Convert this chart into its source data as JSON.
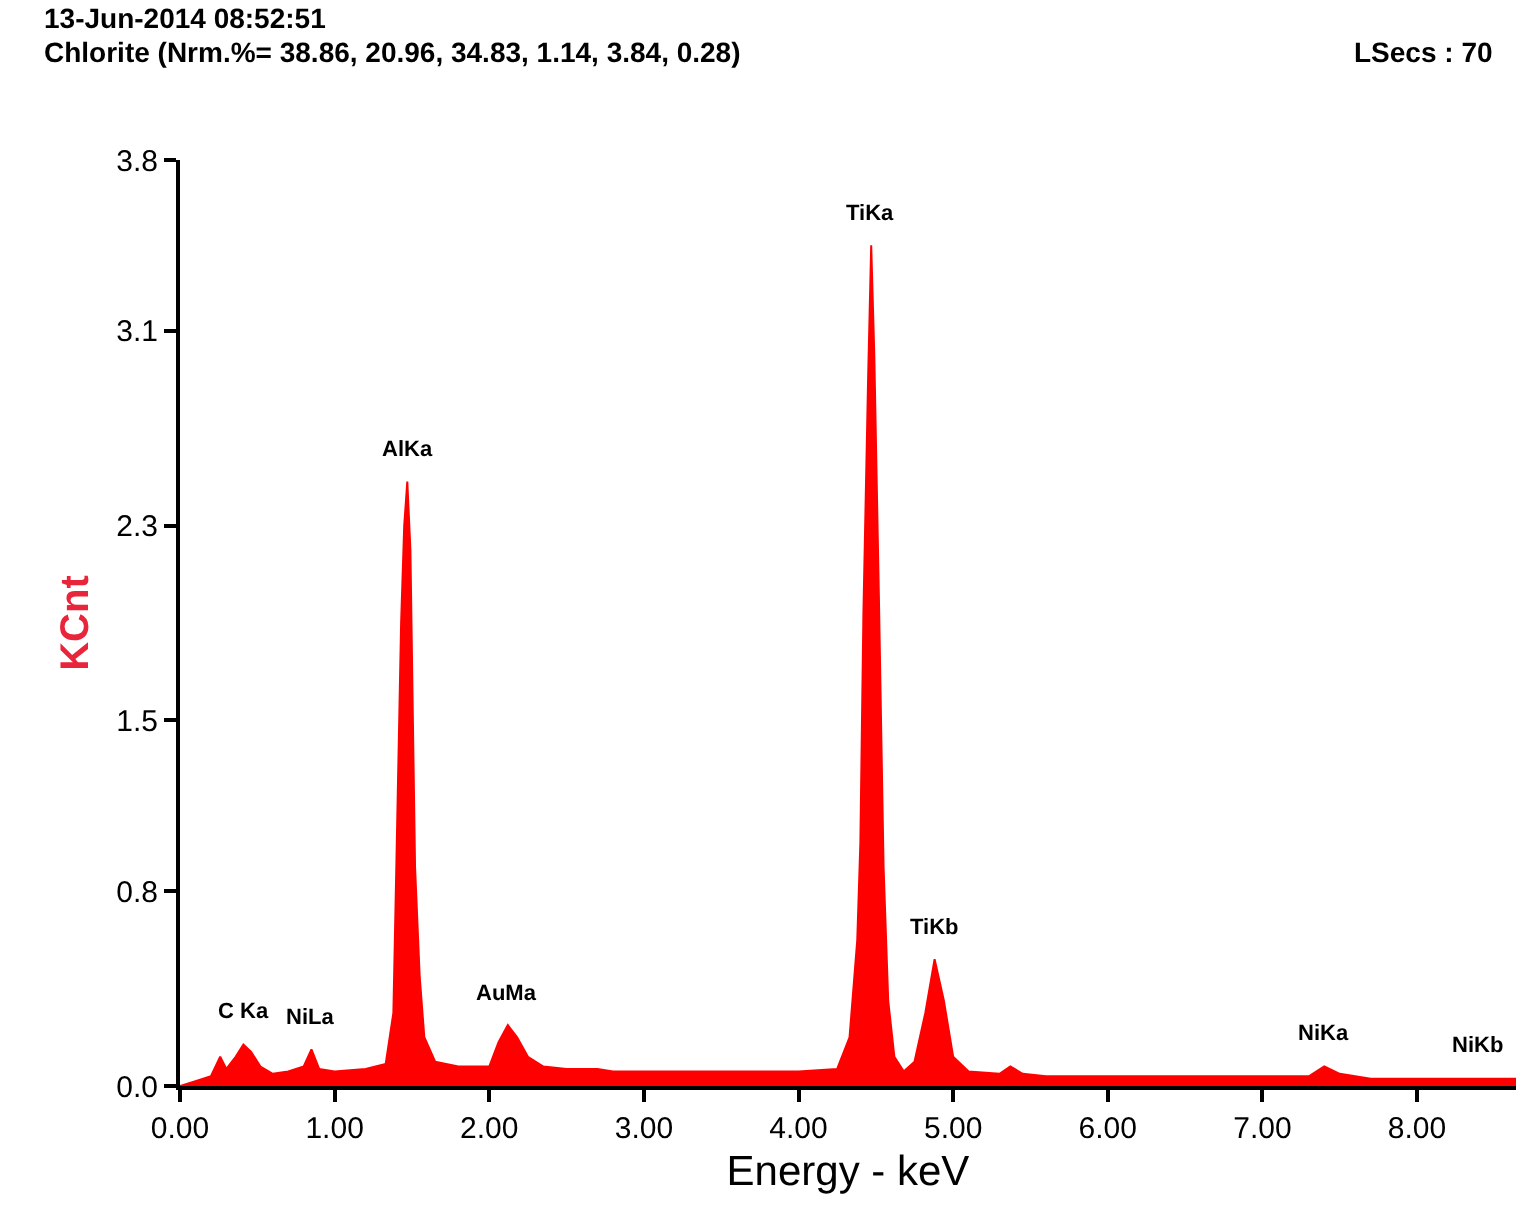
{
  "chart_data": {
    "type": "area",
    "title": "13-Jun-2014 08:52:51",
    "subtitle": "Chlorite (Nrm.%= 38.86, 20.96, 34.83, 1.14, 3.84, 0.28)",
    "xlabel": "Energy - keV",
    "ylabel": "KCnt",
    "annotations": [
      "LSecs : 70",
      {
        "text": "C Ka",
        "x": 0.41,
        "y": 0.17
      },
      {
        "text": "NiLa",
        "x": 0.85,
        "y": 0.15
      },
      {
        "text": "AlKa",
        "x": 1.47,
        "y": 2.48
      },
      {
        "text": "AuMa",
        "x": 2.12,
        "y": 0.25
      },
      {
        "text": "TiKa",
        "x": 4.47,
        "y": 3.45
      },
      {
        "text": "TiKb",
        "x": 4.88,
        "y": 0.52
      },
      {
        "text": "NiKa",
        "x": 7.4,
        "y": 0.08
      },
      {
        "text": "NiKb",
        "x": 8.4,
        "y": 0.03
      }
    ],
    "x": [
      0.0,
      0.1,
      0.2,
      0.26,
      0.3,
      0.36,
      0.41,
      0.46,
      0.52,
      0.6,
      0.7,
      0.8,
      0.85,
      0.9,
      1.0,
      1.2,
      1.33,
      1.38,
      1.4,
      1.43,
      1.45,
      1.47,
      1.49,
      1.52,
      1.55,
      1.58,
      1.65,
      1.8,
      2.0,
      2.06,
      2.12,
      2.18,
      2.25,
      2.35,
      2.5,
      2.7,
      2.8,
      3.0,
      3.5,
      4.0,
      4.25,
      4.33,
      4.38,
      4.4,
      4.42,
      4.45,
      4.47,
      4.49,
      4.52,
      4.55,
      4.58,
      4.62,
      4.68,
      4.75,
      4.82,
      4.88,
      4.94,
      5.0,
      5.1,
      5.3,
      5.37,
      5.45,
      5.6,
      6.0,
      6.5,
      7.0,
      7.3,
      7.4,
      7.5,
      7.7,
      8.0,
      8.4,
      8.64
    ],
    "series": [
      {
        "color": "#ff0000",
        "values": [
          0.0,
          0.02,
          0.04,
          0.12,
          0.07,
          0.12,
          0.17,
          0.14,
          0.08,
          0.05,
          0.06,
          0.08,
          0.15,
          0.07,
          0.06,
          0.07,
          0.09,
          0.3,
          0.93,
          1.9,
          2.3,
          2.48,
          2.2,
          0.9,
          0.45,
          0.2,
          0.1,
          0.08,
          0.08,
          0.18,
          0.25,
          0.2,
          0.12,
          0.08,
          0.07,
          0.07,
          0.06,
          0.06,
          0.06,
          0.06,
          0.07,
          0.2,
          0.6,
          1.0,
          1.95,
          2.9,
          3.45,
          3.0,
          2.0,
          0.9,
          0.35,
          0.12,
          0.06,
          0.1,
          0.3,
          0.52,
          0.35,
          0.12,
          0.06,
          0.05,
          0.08,
          0.05,
          0.04,
          0.04,
          0.04,
          0.04,
          0.04,
          0.08,
          0.05,
          0.03,
          0.03,
          0.03,
          0.03
        ]
      }
    ],
    "xlim": [
      0,
      8.64
    ],
    "xticks": [
      {
        "value": 0,
        "label": "0.00"
      },
      {
        "value": 1,
        "label": "1.00"
      },
      {
        "value": 2,
        "label": "2.00"
      },
      {
        "value": 3,
        "label": "3.00"
      },
      {
        "value": 4,
        "label": "4.00"
      },
      {
        "value": 5,
        "label": "5.00"
      },
      {
        "value": 6,
        "label": "6.00"
      },
      {
        "value": 7,
        "label": "7.00"
      },
      {
        "value": 8,
        "label": "8.00"
      }
    ],
    "ylim": [
      0,
      3.8
    ],
    "yticks": [
      {
        "value": 0,
        "label": "0.0"
      },
      0.8,
      1.5,
      2.3,
      3.1,
      3.8
    ]
  }
}
